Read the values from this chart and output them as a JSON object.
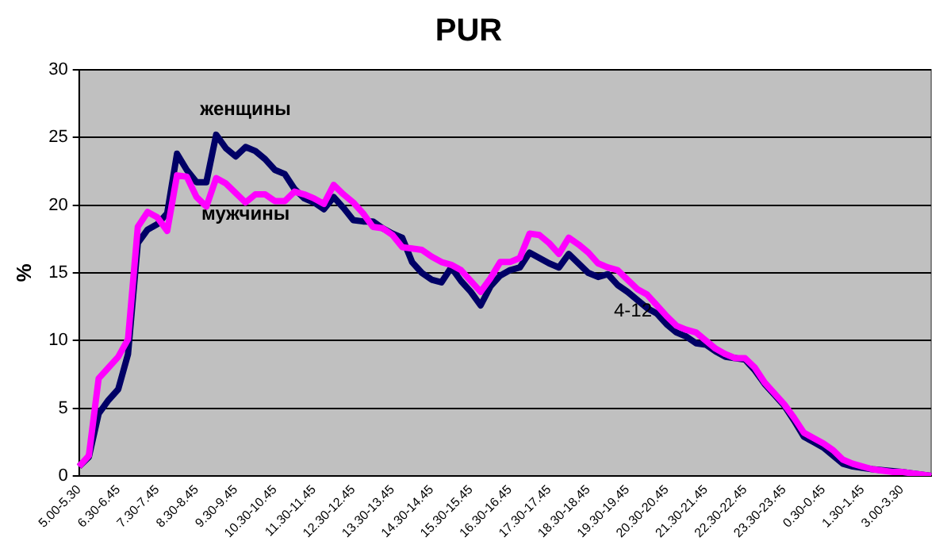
{
  "chart_data": {
    "type": "line",
    "title": "PUR",
    "ylabel": "%",
    "categories": [
      "5.00-5.30",
      null,
      null,
      null,
      "6.30-6.45",
      null,
      null,
      null,
      "7.30-7.45",
      null,
      null,
      null,
      "8.30-8.45",
      null,
      null,
      null,
      "9.30-9.45",
      null,
      null,
      null,
      "10.30-10.45",
      null,
      null,
      null,
      "11.30-11.45",
      null,
      null,
      null,
      "12.30-12.45",
      null,
      null,
      null,
      "13.30-13.45",
      null,
      null,
      null,
      "14.30-14.45",
      null,
      null,
      null,
      "15.30-15.45",
      null,
      null,
      null,
      "16.30-16.45",
      null,
      null,
      null,
      "17.30-17.45",
      null,
      null,
      null,
      "18.30-18.45",
      null,
      null,
      null,
      "19.30-19.45",
      null,
      null,
      null,
      "20.30-20.45",
      null,
      null,
      null,
      "21.30-21.45",
      null,
      null,
      null,
      "22.30-22.45",
      null,
      null,
      null,
      "23.30-23.45",
      null,
      null,
      null,
      "0.30-0.45",
      null,
      null,
      null,
      "1.30-1.45",
      null,
      null,
      null,
      "3.00-3.30",
      null,
      null,
      null
    ],
    "series": [
      {
        "name": "женщины",
        "color": "#000066",
        "values": [
          0.7,
          1.4,
          4.6,
          5.6,
          6.4,
          9,
          17.2,
          18.2,
          18.6,
          19.4,
          23.8,
          22.6,
          21.7,
          21.7,
          25.2,
          24.2,
          23.6,
          24.3,
          24,
          23.4,
          22.6,
          22.3,
          21.2,
          20.5,
          20.2,
          19.7,
          20.6,
          19.8,
          18.9,
          18.8,
          18.8,
          18.3,
          17.9,
          17.6,
          15.8,
          15,
          14.5,
          14.3,
          15.4,
          14.4,
          13.6,
          12.6,
          14,
          14.8,
          15.2,
          15.4,
          16.5,
          16.1,
          15.7,
          15.4,
          16.4,
          15.7,
          15,
          14.7,
          14.9,
          14.1,
          13.6,
          13,
          12.4,
          12,
          11.2,
          10.6,
          10.3,
          9.8,
          9.7,
          9.2,
          8.8,
          8.7,
          8.6,
          7.8,
          6.8,
          6,
          5.2,
          4.1,
          2.9,
          2.5,
          2.1,
          1.5,
          0.9,
          0.7,
          0.6,
          0.5,
          null,
          null,
          0.3,
          0.2,
          null,
          0
        ]
      },
      {
        "name": "мужчины",
        "color": "#ff00ff",
        "values": [
          0.7,
          1.5,
          7.2,
          8,
          8.8,
          10.1,
          18.4,
          19.5,
          19.1,
          18.1,
          22.2,
          22.1,
          20.6,
          19.9,
          22,
          21.6,
          20.9,
          20.2,
          20.8,
          20.8,
          20.3,
          20.3,
          21,
          20.8,
          20.5,
          20.1,
          21.5,
          20.8,
          20.2,
          19.4,
          18.4,
          18.3,
          17.8,
          16.9,
          16.8,
          16.7,
          16.2,
          15.8,
          15.6,
          15.2,
          14.4,
          13.6,
          14.6,
          15.8,
          15.8,
          16.1,
          17.9,
          17.8,
          17.2,
          16.4,
          17.6,
          17.1,
          16.5,
          15.7,
          15.4,
          15.2,
          14.5,
          13.8,
          13.4,
          12.6,
          11.8,
          11.1,
          10.8,
          10.6,
          10,
          9.4,
          9,
          8.7,
          8.7,
          8,
          6.9,
          6.1,
          5.3,
          4.3,
          3.2,
          2.8,
          2.4,
          1.9,
          1.2,
          0.9,
          0.7,
          0.5,
          0.4,
          0.3,
          0.3,
          0.2,
          0.1,
          0
        ]
      }
    ],
    "ylim": [
      0,
      30
    ],
    "yticks": [
      0,
      5,
      10,
      15,
      20,
      25,
      30
    ],
    "grid": "y",
    "legend": false,
    "marker": "none",
    "line_style": "solid",
    "annotations": [
      "4-12"
    ]
  }
}
